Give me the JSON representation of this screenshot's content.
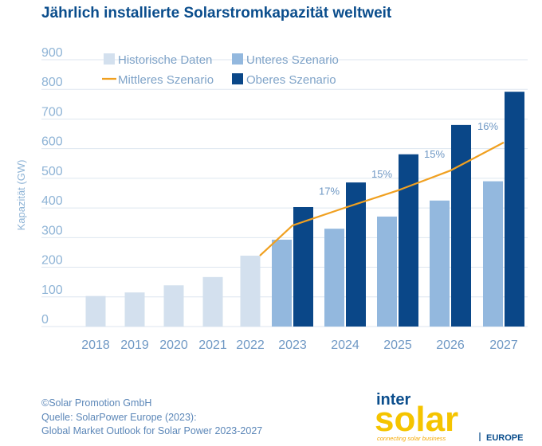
{
  "title": "Jährlich installierte Solarstromkapazität weltweit",
  "footer": {
    "line1": "©Solar Promotion GmbH",
    "line2": "Quelle: SolarPower Europe (2023):",
    "line3": "Global Market Outlook for Solar Power 2023-2027"
  },
  "logo": {
    "word1": "inter",
    "word2": "solar",
    "tagline": "connecting solar business",
    "region": "EUROPE"
  },
  "colors": {
    "historical": "#d3e0ee",
    "low": "#93b8de",
    "high": "#0a4788",
    "mid": "#f0a020",
    "accent": "#0a4d8c"
  },
  "chart_data": {
    "type": "bar",
    "title": "Jährlich installierte Solarstromkapazität weltweit",
    "xlabel": "",
    "ylabel": "Kapazität (GW)",
    "ylim": [
      0,
      900
    ],
    "yticks": [
      0,
      100,
      200,
      300,
      400,
      500,
      600,
      700,
      800,
      900
    ],
    "grid": true,
    "legend_position": "top",
    "categories": [
      "2018",
      "2019",
      "2020",
      "2021",
      "2022",
      "2023",
      "2024",
      "2025",
      "2026",
      "2027"
    ],
    "series": [
      {
        "name": "Historische Daten",
        "kind": "bar",
        "values": [
          103,
          115,
          139,
          167,
          239,
          null,
          null,
          null,
          null,
          null
        ]
      },
      {
        "name": "Unteres Szenario",
        "kind": "bar",
        "values": [
          null,
          null,
          null,
          null,
          null,
          293,
          330,
          371,
          425,
          490
        ]
      },
      {
        "name": "Oberes Szenario",
        "kind": "bar",
        "values": [
          null,
          null,
          null,
          null,
          null,
          403,
          486,
          581,
          680,
          792
        ]
      },
      {
        "name": "Mittleres Szenario",
        "kind": "line",
        "values": [
          null,
          null,
          null,
          null,
          239,
          341,
          401,
          459,
          526,
          621
        ]
      }
    ],
    "annotations": [
      {
        "category": "2024",
        "text": "17%"
      },
      {
        "category": "2025",
        "text": "15%"
      },
      {
        "category": "2026",
        "text": "15%"
      },
      {
        "category": "2027",
        "text": "16%"
      }
    ]
  }
}
